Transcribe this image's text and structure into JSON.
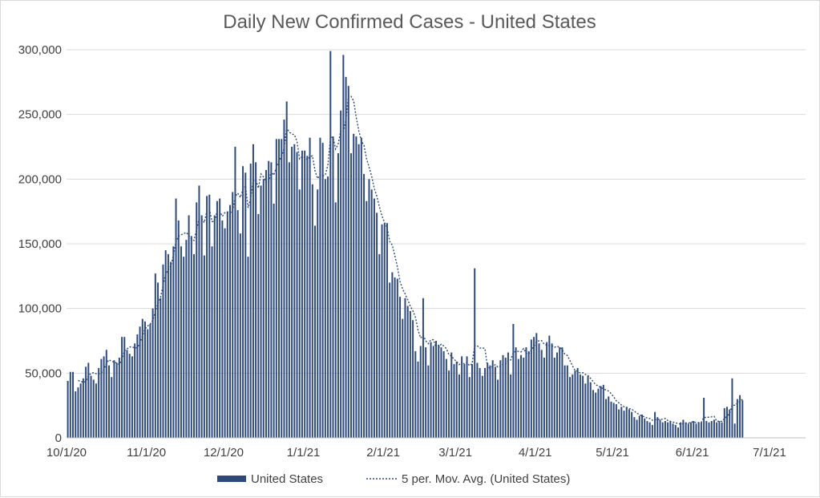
{
  "chart_data": {
    "type": "bar",
    "title": "Daily New Confirmed Cases - United States",
    "xlabel": "",
    "ylabel": "",
    "x_tick_labels": [
      "10/1/20",
      "11/1/20",
      "12/1/20",
      "1/1/21",
      "2/1/21",
      "3/1/21",
      "4/1/21",
      "5/1/21",
      "6/1/21",
      "7/1/21"
    ],
    "y_tick_labels": [
      "0",
      "50,000",
      "100,000",
      "150,000",
      "200,000",
      "250,000",
      "300,000"
    ],
    "ylim": [
      0,
      300000
    ],
    "x_range": [
      "2020-10-01",
      "2021-07-15"
    ],
    "grid": "horizontal",
    "legend_position": "bottom",
    "colors": {
      "bar": "#2e4a7d",
      "moving_average": "#2e4a7d",
      "grid": "#d9d9d9",
      "title": "#595959",
      "tick": "#404040"
    },
    "start_date": "2020-10-01",
    "series": [
      {
        "name": "United States",
        "kind": "bar",
        "values": [
          44000,
          51000,
          51000,
          36000,
          39000,
          42000,
          46000,
          55000,
          58000,
          48000,
          45000,
          42000,
          54000,
          61000,
          63000,
          68000,
          56000,
          47000,
          60000,
          58000,
          62000,
          78000,
          78000,
          68000,
          65000,
          63000,
          73000,
          80000,
          86000,
          92000,
          90000,
          84000,
          88000,
          100000,
          127000,
          120000,
          108000,
          134000,
          145000,
          142000,
          136000,
          148000,
          185000,
          168000,
          148000,
          140000,
          153000,
          172000,
          156000,
          142000,
          182000,
          195000,
          172000,
          141000,
          187000,
          188000,
          148000,
          172000,
          183000,
          185000,
          168000,
          162000,
          175000,
          180000,
          190000,
          225000,
          176000,
          158000,
          210000,
          205000,
          140000,
          212000,
          227000,
          213000,
          173000,
          195000,
          200000,
          207000,
          214000,
          213000,
          181000,
          231000,
          231000,
          231000,
          246000,
          260000,
          213000,
          225000,
          227000,
          221000,
          192000,
          222000,
          222000,
          218000,
          232000,
          196000,
          164000,
          192000,
          232000,
          228000,
          200000,
          202000,
          299000,
          233000,
          182000,
          220000,
          253000,
          296000,
          279000,
          272000,
          220000,
          235000,
          233000,
          227000,
          232000,
          204000,
          183000,
          200000,
          192000,
          185000,
          174000,
          142000,
          165000,
          166000,
          166000,
          120000,
          128000,
          124000,
          123000,
          109000,
          92000,
          108000,
          102000,
          98000,
          91000,
          67000,
          59000,
          71000,
          108000,
          70000,
          56000,
          74000,
          71000,
          75000,
          72000,
          70000,
          67000,
          61000,
          52000,
          66000,
          57000,
          59000,
          49000,
          63000,
          57000,
          63000,
          47000,
          57000,
          131000,
          58000,
          54000,
          48000,
          54000,
          58000,
          56000,
          60000,
          55000,
          45000,
          60000,
          64000,
          62000,
          66000,
          49000,
          88000,
          70000,
          61000,
          64000,
          62000,
          70000,
          67000,
          76000,
          78000,
          81000,
          73000,
          68000,
          62000,
          74000,
          79000,
          73000,
          62000,
          66000,
          70000,
          70000,
          56000,
          56000,
          47000,
          49000,
          52000,
          54000,
          49000,
          48000,
          42000,
          48000,
          43000,
          37000,
          35000,
          38000,
          40000,
          41000,
          30000,
          32000,
          28000,
          27000,
          26000,
          22000,
          24000,
          21000,
          24000,
          22000,
          20000,
          16000,
          14000,
          17000,
          18000,
          15000,
          13000,
          12000,
          10000,
          20000,
          16000,
          14000,
          12000,
          13000,
          12000,
          13000,
          11000,
          10000,
          8000,
          12000,
          14000,
          12000,
          11000,
          12000,
          13000,
          11000,
          12000,
          12000,
          31000,
          13000,
          12000,
          13000,
          14000,
          12000,
          13000,
          12000,
          23000,
          24000,
          22000,
          46000,
          11000,
          30000,
          33000,
          29000
        ]
      },
      {
        "name": "5 per. Mov. Avg. (United States)",
        "kind": "moving_average",
        "period": 5
      }
    ]
  }
}
